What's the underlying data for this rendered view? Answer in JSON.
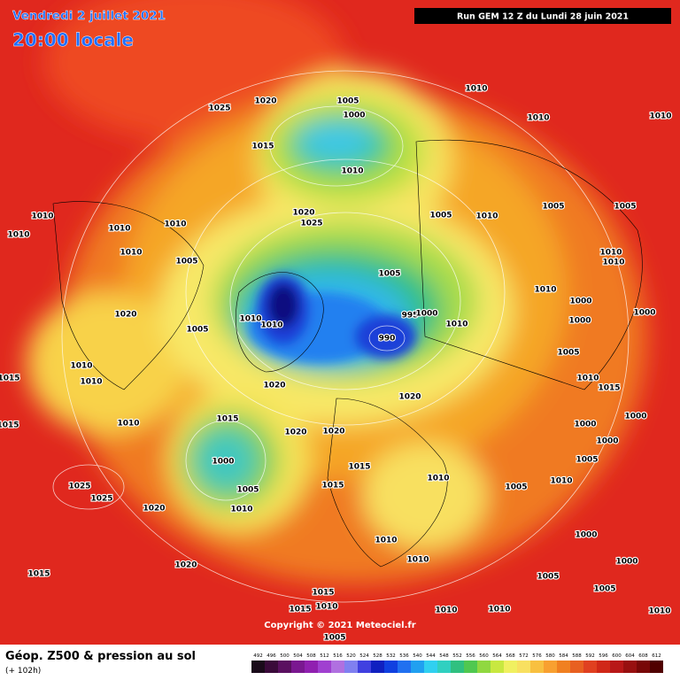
{
  "header": {
    "date": "Vendredi 2 juillet 2021",
    "time": "20:00 locale",
    "run": "Run GEM 12 Z du Lundi 28 juin 2021"
  },
  "copyright": "Copyright © 2021 Meteociel.fr",
  "footer": {
    "title": "Géop. Z500 & pression au sol",
    "lead": "(+ 102h)"
  },
  "legend": {
    "scale": [
      492,
      496,
      500,
      504,
      508,
      512,
      516,
      520,
      524,
      528,
      532,
      536,
      540,
      544,
      548,
      552,
      556,
      560,
      564,
      568,
      572,
      576,
      580,
      584,
      588,
      592,
      596,
      600,
      604,
      608,
      612
    ]
  },
  "isobars": [
    "1025",
    "1020",
    "1005",
    "1000",
    "1010",
    "1010",
    "1010",
    "1015",
    "1010",
    "1010",
    "1010",
    "1010",
    "1010",
    "1010",
    "1005",
    "1020",
    "1025",
    "1005",
    "1010",
    "1005",
    "1005",
    "1010",
    "1010",
    "1005",
    "1010",
    "1000",
    "1000",
    "1000",
    "1020",
    "1005",
    "1010",
    "1010",
    "995",
    "1000",
    "1010",
    "990",
    "1005",
    "1015",
    "1010",
    "1010",
    "1020",
    "1020",
    "1010",
    "1015",
    "1000",
    "1015",
    "1010",
    "1015",
    "1020",
    "1020",
    "1000",
    "1000",
    "1005",
    "1015",
    "1010",
    "1000",
    "1005",
    "1015",
    "1005",
    "1010",
    "1025",
    "1025",
    "1020",
    "1010",
    "1000",
    "1010",
    "1010",
    "1020",
    "1000",
    "1015",
    "1005",
    "1005",
    "1015",
    "1015",
    "1010",
    "1010",
    "1010",
    "1010",
    "1005"
  ]
}
